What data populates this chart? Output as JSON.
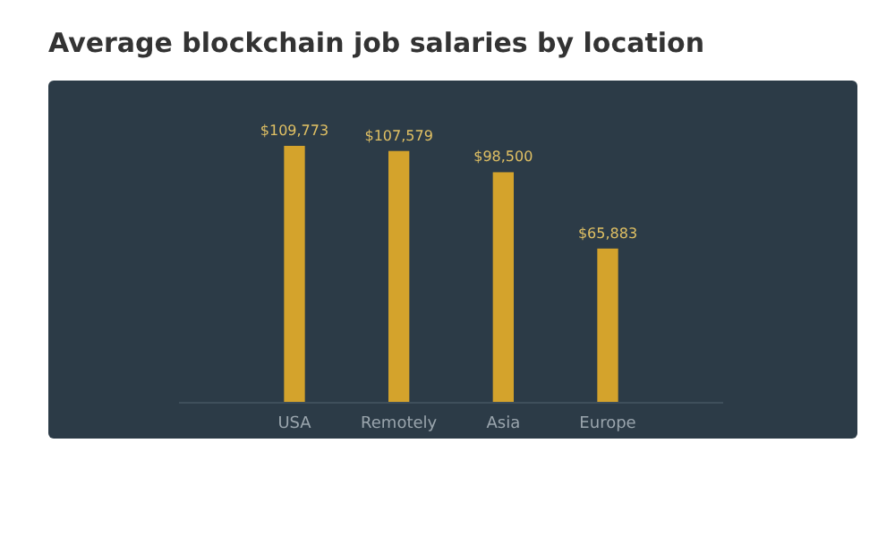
{
  "chart_data": {
    "type": "bar",
    "title": "Average blockchain job salaries by location",
    "categories": [
      "USA",
      "Remotely",
      "Asia",
      "Europe"
    ],
    "values": [
      109773,
      107579,
      98500,
      65883
    ],
    "value_labels": [
      "$109,773",
      "$107,579",
      "$98,500",
      "$65,883"
    ],
    "color": "#d4a32c",
    "relative": false
  }
}
